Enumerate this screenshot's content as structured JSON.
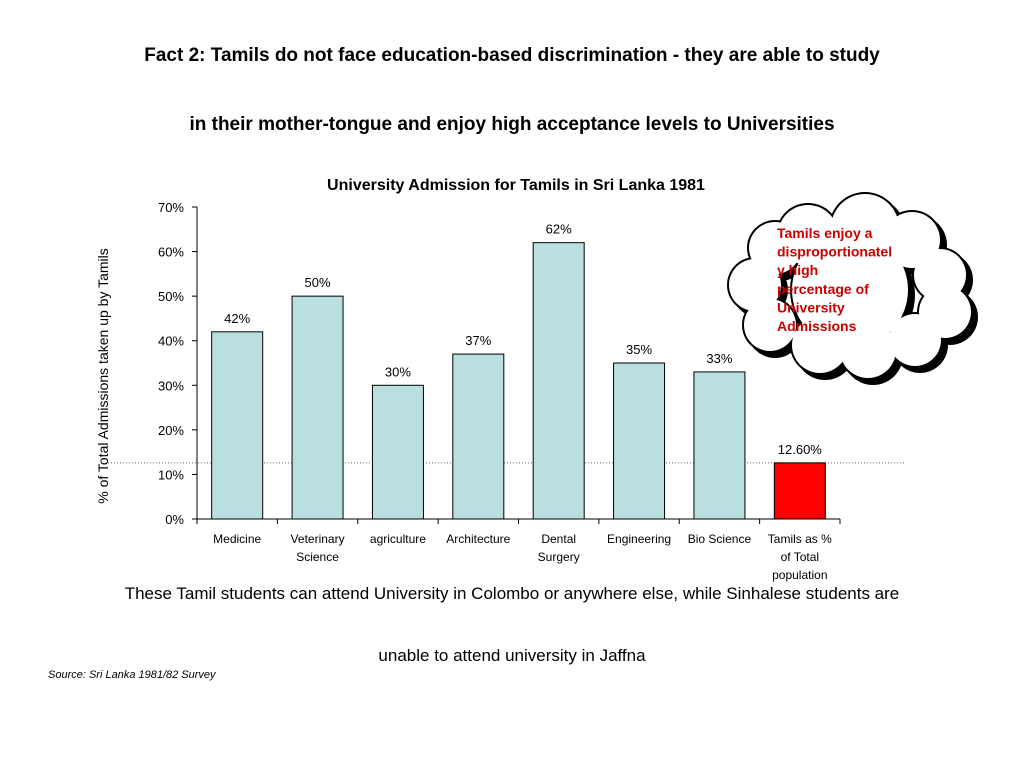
{
  "slide": {
    "title_line1": "Fact 2: Tamils do not face education-based discrimination - they are able to study",
    "title_line2": "in their mother-tongue and enjoy high acceptance levels to Universities",
    "body_line1": "These Tamil students can attend University in Colombo or anywhere else, while Sinhalese students are",
    "body_line2": "unable to attend university in Jaffna",
    "source": "Source:  Sri Lanka 1981/82 Survey"
  },
  "callout": {
    "lines": [
      "Tamils enjoy a",
      "disproportionatel",
      "y high",
      "percentage of",
      "University",
      "Admissions"
    ],
    "color": "#cc0000"
  },
  "chart_data": {
    "type": "bar",
    "title": "University Admission for Tamils in Sri Lanka 1981",
    "xlabel": "",
    "ylabel": "% of Total Admissions taken up by Tamils",
    "ylim": [
      0,
      70
    ],
    "yticks": [
      0,
      10,
      20,
      30,
      40,
      50,
      60,
      70
    ],
    "ytick_labels": [
      "0%",
      "10%",
      "20%",
      "30%",
      "40%",
      "50%",
      "60%",
      "70%"
    ],
    "categories": [
      [
        "Medicine"
      ],
      [
        "Veterinary",
        "Science"
      ],
      [
        "agriculture"
      ],
      [
        "Architecture"
      ],
      [
        "Dental",
        "Surgery"
      ],
      [
        "Engineering"
      ],
      [
        "Bio Science"
      ],
      [
        "Tamils as %",
        "of Total",
        "population"
      ]
    ],
    "values": [
      42,
      50,
      30,
      37,
      62,
      35,
      33,
      12.6
    ],
    "data_labels": [
      "42%",
      "50%",
      "30%",
      "37%",
      "62%",
      "35%",
      "33%",
      "12.60%"
    ],
    "bar_colors": [
      "#b9dfe0",
      "#b9dfe0",
      "#b9dfe0",
      "#b9dfe0",
      "#b9dfe0",
      "#b9dfe0",
      "#b9dfe0",
      "#ff0000"
    ],
    "reference_line": 12.6,
    "grid": false
  }
}
